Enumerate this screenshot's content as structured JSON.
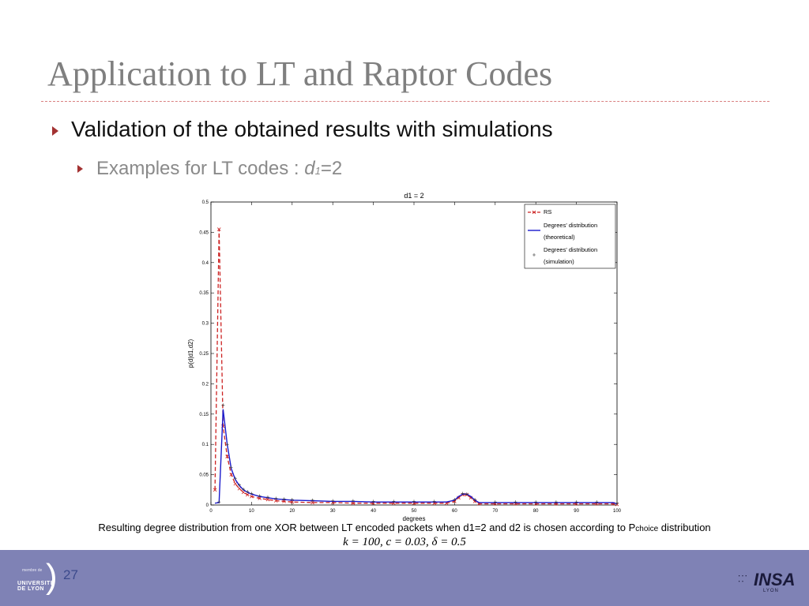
{
  "slide": {
    "title": "Application to LT and Raptor Codes",
    "bullet1": "Validation of the obtained results with simulations",
    "bullet2_prefix": "Examples for LT codes : ",
    "bullet2_var": "d",
    "bullet2_sub": "1",
    "bullet2_suffix": "=2",
    "caption_main": "Resulting degree distribution from one XOR between LT encoded packets when d1=2 and d2 is chosen according to P",
    "caption_sub": "choice",
    "caption_end": " distribution",
    "formula": "k = 100, c = 0.03, δ = 0.5",
    "page_number": "27"
  },
  "footer": {
    "university_line1": "membre de",
    "university_line2": "UNIVERSITÉ DE LYON",
    "insa_name": "INSA",
    "insa_city": "LYON"
  },
  "colors": {
    "title": "#7f7f7f",
    "accent_arrow": "#a33232",
    "footer": "#7f82b5",
    "series_rs": "#cc2222",
    "series_theoretical": "#1a1acc",
    "series_simulation": "#333333"
  },
  "chart_data": {
    "type": "line",
    "title": "d1 = 2",
    "xlabel": "degrees",
    "ylabel": "p(d|d1,d2)",
    "xlim": [
      0,
      100
    ],
    "ylim": [
      0,
      0.5
    ],
    "xticks": [
      0,
      10,
      20,
      30,
      40,
      50,
      60,
      70,
      80,
      90,
      100
    ],
    "yticks": [
      0,
      0.05,
      0.1,
      0.15,
      0.2,
      0.25,
      0.3,
      0.35,
      0.4,
      0.45,
      0.5
    ],
    "grid": false,
    "legend_position": "top-right",
    "legend": [
      "RS",
      "Degrees' distribution",
      "(theoretical)",
      "Degrees' distribution",
      "(simulation)"
    ],
    "series": [
      {
        "name": "RS",
        "style": "dashed-x",
        "color": "#cc2222",
        "x": [
          1,
          2,
          3,
          4,
          5,
          6,
          7,
          8,
          9,
          10,
          12,
          14,
          16,
          18,
          20,
          25,
          30,
          35,
          40,
          45,
          50,
          55,
          58,
          60,
          61,
          62,
          63,
          64,
          65,
          66,
          70,
          75,
          80,
          85,
          90,
          95,
          99,
          100
        ],
        "y": [
          0.025,
          0.455,
          0.13,
          0.08,
          0.05,
          0.035,
          0.027,
          0.021,
          0.017,
          0.014,
          0.011,
          0.009,
          0.007,
          0.006,
          0.005,
          0.004,
          0.004,
          0.003,
          0.003,
          0.003,
          0.003,
          0.003,
          0.003,
          0.006,
          0.012,
          0.017,
          0.017,
          0.012,
          0.006,
          0.002,
          0.002,
          0.002,
          0.002,
          0.002,
          0.002,
          0.002,
          0.002,
          0.001
        ]
      },
      {
        "name": "Degrees' distribution (theoretical)",
        "style": "solid",
        "color": "#1a1acc",
        "x": [
          1,
          2,
          3,
          4,
          5,
          6,
          7,
          8,
          9,
          10,
          12,
          14,
          16,
          18,
          20,
          25,
          30,
          35,
          40,
          45,
          50,
          55,
          58,
          60,
          61,
          62,
          63,
          64,
          65,
          66,
          70,
          75,
          80,
          85,
          90,
          95,
          99,
          100
        ],
        "y": [
          0.003,
          0.004,
          0.158,
          0.1,
          0.06,
          0.042,
          0.032,
          0.025,
          0.021,
          0.018,
          0.014,
          0.012,
          0.01,
          0.009,
          0.008,
          0.007,
          0.006,
          0.006,
          0.005,
          0.005,
          0.005,
          0.005,
          0.005,
          0.008,
          0.014,
          0.018,
          0.018,
          0.014,
          0.008,
          0.004,
          0.004,
          0.004,
          0.004,
          0.004,
          0.004,
          0.004,
          0.004,
          0.002
        ]
      },
      {
        "name": "Degrees' distribution (simulation)",
        "style": "markers-plus",
        "color": "#333333",
        "x": [
          2,
          3,
          4,
          5,
          6,
          7,
          8,
          9,
          10,
          12,
          14,
          16,
          18,
          20,
          25,
          30,
          35,
          40,
          45,
          50,
          55,
          60,
          62,
          63,
          65,
          70,
          75,
          80,
          85,
          90,
          95,
          100
        ],
        "y": [
          0.005,
          0.165,
          0.1,
          0.062,
          0.044,
          0.033,
          0.026,
          0.022,
          0.019,
          0.015,
          0.013,
          0.011,
          0.01,
          0.009,
          0.008,
          0.007,
          0.007,
          0.006,
          0.006,
          0.006,
          0.006,
          0.009,
          0.019,
          0.018,
          0.009,
          0.005,
          0.005,
          0.005,
          0.005,
          0.005,
          0.005,
          0.003
        ]
      }
    ]
  }
}
